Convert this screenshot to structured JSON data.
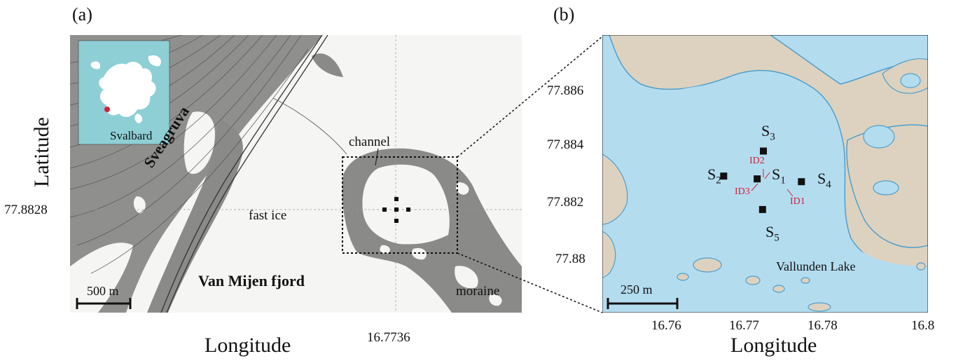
{
  "panel_a": {
    "label": "(a)",
    "ylabel": "Latitude",
    "xlabel": "Longitude",
    "y_tick": "77.8828",
    "x_tick": "16.7736",
    "inset_label": "Svalbard",
    "labels": {
      "road": "Sveagruva",
      "channel": "channel",
      "fast_ice": "fast ice",
      "fjord": "Van Mijen fjord",
      "moraine": "moraine"
    },
    "scalebar": "500 m"
  },
  "panel_b": {
    "label": "(b)",
    "xlabel": "Longitude",
    "x_ticks": [
      "16.76",
      "16.77",
      "16.78",
      "16.8"
    ],
    "y_ticks": [
      "77.886",
      "77.884",
      "77.882",
      "77.88"
    ],
    "scalebar": "250 m",
    "lake_label": "Vallunden Lake",
    "sensors": [
      {
        "name": "S",
        "sub": "1",
        "lon": 16.7728,
        "lat": 77.8828
      },
      {
        "name": "S",
        "sub": "2",
        "lon": 16.7685,
        "lat": 77.8829
      },
      {
        "name": "S",
        "sub": "3",
        "lon": 16.7736,
        "lat": 77.8838
      },
      {
        "name": "S",
        "sub": "4",
        "lon": 16.7785,
        "lat": 77.8827
      },
      {
        "name": "S",
        "sub": "5",
        "lon": 16.7735,
        "lat": 77.8817
      }
    ],
    "sources": [
      "ID1",
      "ID2",
      "ID3"
    ]
  },
  "colors": {
    "land_a": "#f5f5f3",
    "moraine_grey": "#8a8a88",
    "sea_inset": "#8ecfd6",
    "lake_blue": "#b4dcef",
    "lake_edge": "#4f9fcc",
    "land_b": "#ddd2bf",
    "source_red": "#d0233b"
  }
}
